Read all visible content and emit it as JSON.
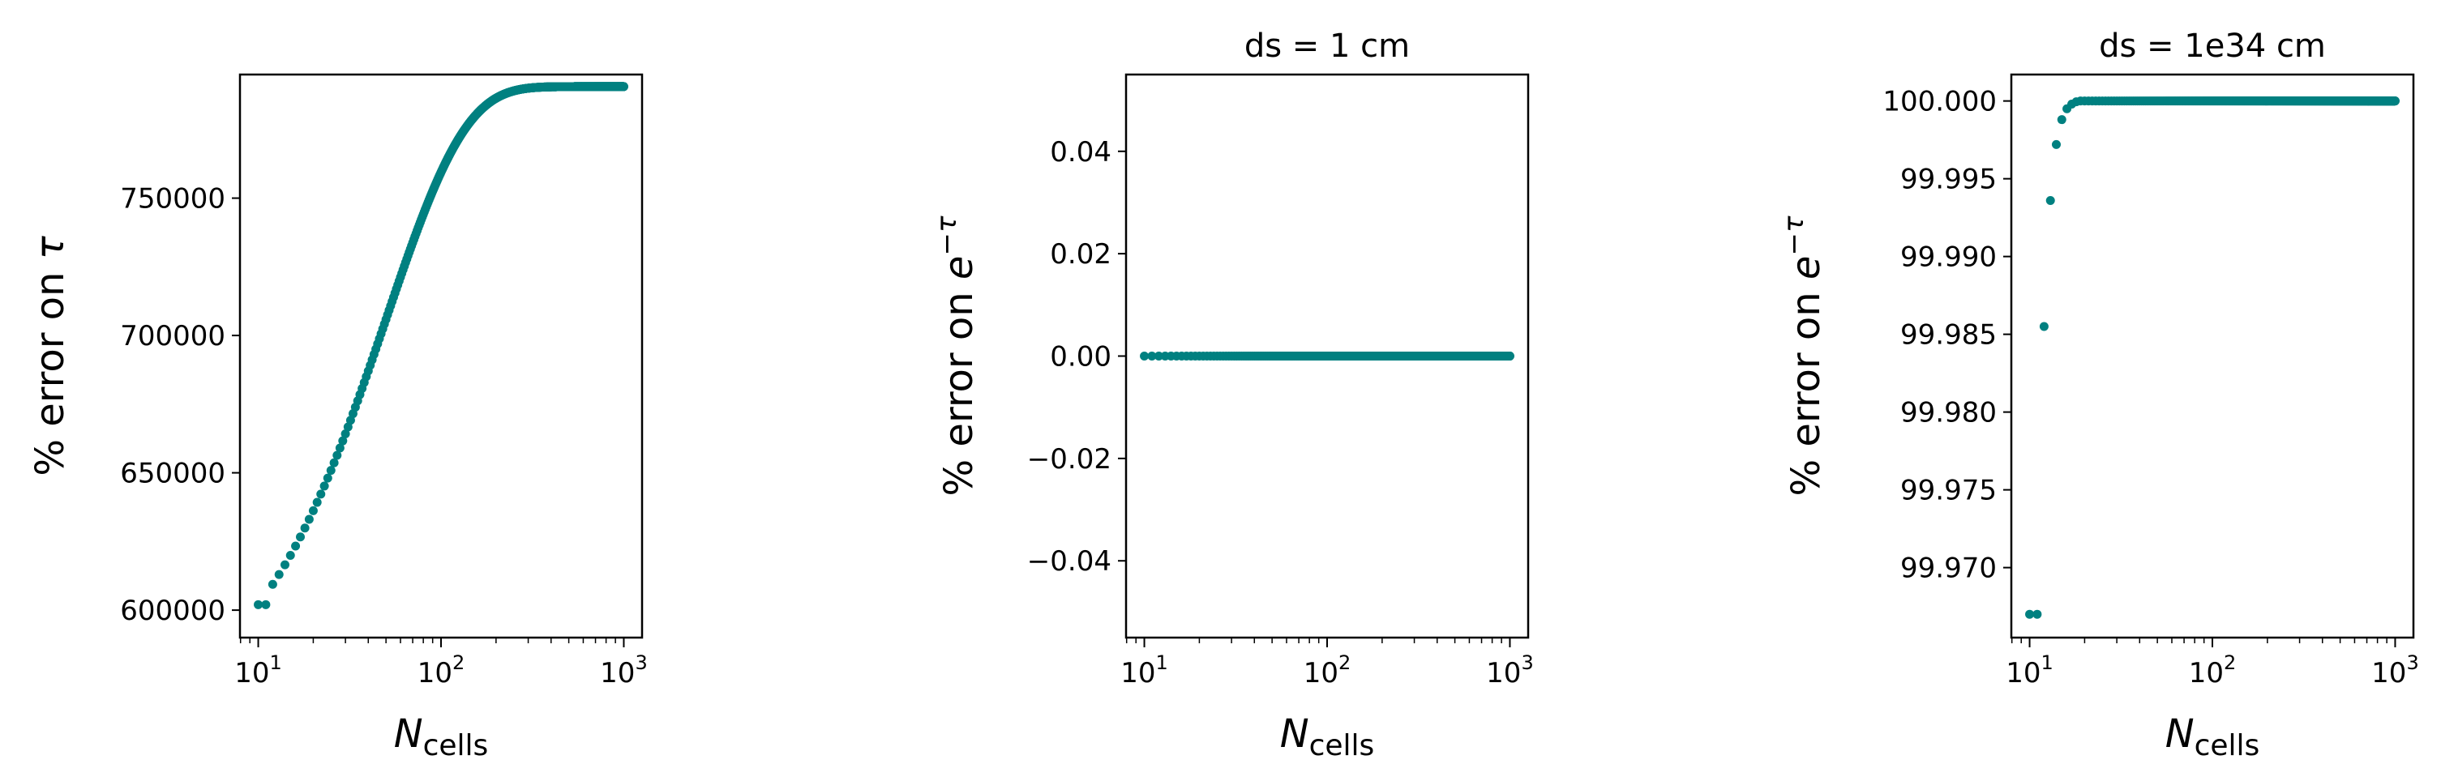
{
  "figure": {
    "marker_color": "#008080"
  },
  "chart_data": [
    {
      "type": "scatter",
      "title": "",
      "xlabel": {
        "symbol": "N",
        "subscript": "cells"
      },
      "ylabel": {
        "text": "% error on ",
        "symbol": "τ",
        "sup": ""
      },
      "xscale": "log",
      "xlim": [
        0.9,
        3.1
      ],
      "xticks": [
        {
          "base": "10",
          "exp": "1",
          "value": 1
        },
        {
          "base": "10",
          "exp": "2",
          "value": 2
        },
        {
          "base": "10",
          "exp": "3",
          "value": 3
        }
      ],
      "ylim": [
        590000,
        795000
      ],
      "yticks": [
        {
          "v": 600000,
          "label": "600000"
        },
        {
          "v": 650000,
          "label": "650000"
        },
        {
          "v": 700000,
          "label": "700000"
        },
        {
          "v": 750000,
          "label": "750000"
        }
      ],
      "series": [
        {
          "name": "error",
          "shape": "saturating",
          "n_start": 10,
          "n_end": 1000,
          "first_value": 602000,
          "asymptote": 790600,
          "decay": 0.02
        }
      ]
    },
    {
      "type": "scatter",
      "title": "ds = 1 cm",
      "xlabel": {
        "symbol": "N",
        "subscript": "cells"
      },
      "ylabel": {
        "text": "% error on ",
        "symbol": "e",
        "sup": "−τ"
      },
      "xscale": "log",
      "xlim": [
        0.9,
        3.1
      ],
      "xticks": [
        {
          "base": "10",
          "exp": "1",
          "value": 1
        },
        {
          "base": "10",
          "exp": "2",
          "value": 2
        },
        {
          "base": "10",
          "exp": "3",
          "value": 3
        }
      ],
      "ylim": [
        -0.055,
        0.055
      ],
      "yticks": [
        {
          "v": -0.04,
          "label": "−0.04"
        },
        {
          "v": -0.02,
          "label": "−0.02"
        },
        {
          "v": 0.0,
          "label": "0.00"
        },
        {
          "v": 0.02,
          "label": "0.02"
        },
        {
          "v": 0.04,
          "label": "0.04"
        }
      ],
      "series": [
        {
          "name": "error",
          "shape": "constant",
          "n_start": 10,
          "n_end": 1000,
          "value": 0.0
        }
      ]
    },
    {
      "type": "scatter",
      "title": "ds = 1e34 cm",
      "xlabel": {
        "symbol": "N",
        "subscript": "cells"
      },
      "ylabel": {
        "text": "% error on ",
        "symbol": "e",
        "sup": "−τ"
      },
      "xscale": "log",
      "xlim": [
        0.9,
        3.1
      ],
      "xticks": [
        {
          "base": "10",
          "exp": "1",
          "value": 1
        },
        {
          "base": "10",
          "exp": "2",
          "value": 2
        },
        {
          "base": "10",
          "exp": "3",
          "value": 3
        }
      ],
      "ylim": [
        99.9655,
        100.0017
      ],
      "yticks": [
        {
          "v": 99.97,
          "label": "99.970"
        },
        {
          "v": 99.975,
          "label": "99.975"
        },
        {
          "v": 99.98,
          "label": "99.980"
        },
        {
          "v": 99.985,
          "label": "99.985"
        },
        {
          "v": 99.99,
          "label": "99.990"
        },
        {
          "v": 99.995,
          "label": "99.995"
        },
        {
          "v": 100.0,
          "label": "100.000"
        }
      ],
      "series": [
        {
          "name": "error",
          "shape": "points_then_constant",
          "points": [
            [
              10,
              99.967
            ],
            [
              11,
              99.967
            ],
            [
              12,
              99.9855
            ],
            [
              13,
              99.9936
            ],
            [
              14,
              99.9972
            ],
            [
              15,
              99.9988
            ],
            [
              16,
              99.9995
            ],
            [
              17,
              99.9998
            ],
            [
              18,
              99.99995
            ]
          ],
          "n_start": 19,
          "n_end": 1000,
          "value": 100.0
        }
      ]
    }
  ]
}
